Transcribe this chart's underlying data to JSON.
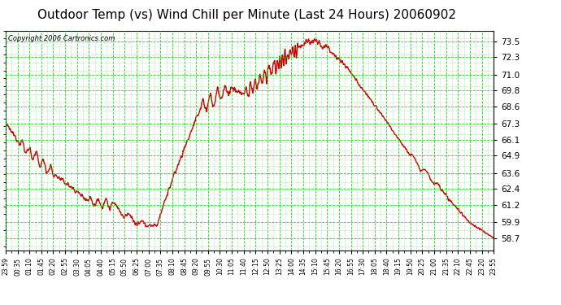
{
  "title": "Outdoor Temp (vs) Wind Chill per Minute (Last 24 Hours) 20060902",
  "copyright_text": "Copyright 2006 Cartronics.com",
  "background_color": "#ffffff",
  "plot_bg_color": "#ffffff",
  "grid_major_color": "#00dd00",
  "grid_minor_color": "#00dd00",
  "line_color": "#cc0000",
  "title_fontsize": 11,
  "yticks": [
    58.7,
    59.9,
    61.2,
    62.4,
    63.6,
    64.9,
    66.1,
    67.3,
    68.6,
    69.8,
    71.0,
    72.3,
    73.5
  ],
  "ymin": 57.8,
  "ymax": 74.3,
  "xtick_labels": [
    "23:59",
    "00:35",
    "01:10",
    "01:45",
    "02:20",
    "02:55",
    "03:30",
    "04:05",
    "04:40",
    "05:15",
    "05:50",
    "06:25",
    "07:00",
    "07:35",
    "08:10",
    "08:45",
    "09:20",
    "09:55",
    "10:30",
    "11:05",
    "11:40",
    "12:15",
    "12:50",
    "13:25",
    "14:00",
    "14:35",
    "15:10",
    "15:45",
    "16:20",
    "16:55",
    "17:30",
    "18:05",
    "18:40",
    "19:15",
    "19:50",
    "20:25",
    "21:00",
    "21:35",
    "22:10",
    "22:45",
    "23:20",
    "23:55"
  ],
  "line_width": 1.0,
  "n_points": 1440
}
